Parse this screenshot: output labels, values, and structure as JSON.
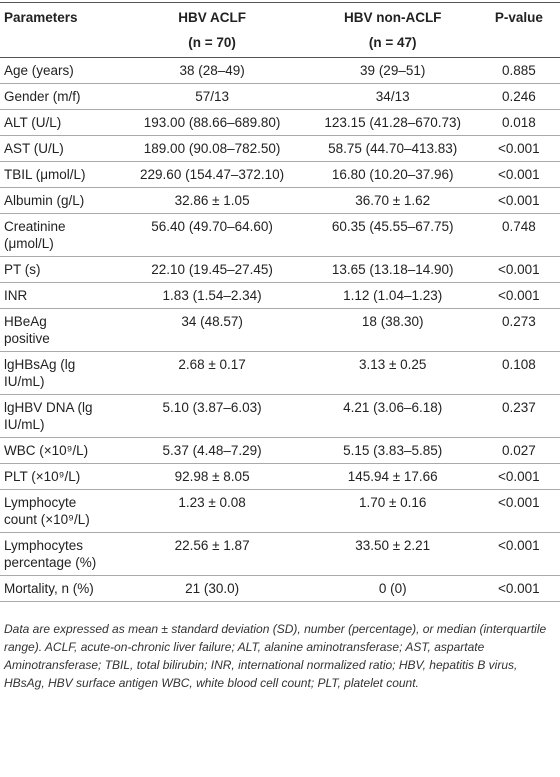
{
  "table": {
    "header": [
      "Parameters",
      "HBV ACLF",
      "HBV non-ACLF",
      "P-value"
    ],
    "subheader": [
      "(n = 70)",
      "(n = 47)"
    ],
    "rows": [
      [
        [
          "Age (years)"
        ],
        "38 (28–49)",
        "39 (29–51)",
        "0.885"
      ],
      [
        [
          "Gender (m/f)"
        ],
        "57/13",
        "34/13",
        "0.246"
      ],
      [
        [
          "ALT (U/L)"
        ],
        "193.00 (88.66–689.80)",
        "123.15 (41.28–670.73)",
        "0.018"
      ],
      [
        [
          "AST (U/L)"
        ],
        "189.00 (90.08–782.50)",
        "58.75 (44.70–413.83)",
        "<0.001"
      ],
      [
        [
          "TBIL (μmol/L)"
        ],
        "229.60 (154.47–372.10)",
        "16.80 (10.20–37.96)",
        "<0.001"
      ],
      [
        [
          "Albumin (g/L)"
        ],
        "32.86 ± 1.05",
        "36.70 ± 1.62",
        "<0.001"
      ],
      [
        [
          "Creatinine",
          "(μmol/L)"
        ],
        "56.40 (49.70–64.60)",
        "60.35 (45.55–67.75)",
        "0.748"
      ],
      [
        [
          "PT (s)"
        ],
        "22.10 (19.45–27.45)",
        "13.65 (13.18–14.90)",
        "<0.001"
      ],
      [
        [
          "INR"
        ],
        "1.83 (1.54–2.34)",
        "1.12 (1.04–1.23)",
        "<0.001"
      ],
      [
        [
          "HBeAg",
          "positive"
        ],
        "34 (48.57)",
        "18 (38.30)",
        "0.273"
      ],
      [
        [
          "lgHBsAg (lg",
          "IU/mL)"
        ],
        "2.68 ± 0.17",
        "3.13 ± 0.25",
        "0.108"
      ],
      [
        [
          "lgHBV DNA (lg",
          "IU/mL)"
        ],
        "5.10 (3.87–6.03)",
        "4.21 (3.06–6.18)",
        "0.237"
      ],
      [
        [
          "WBC (×10⁹/L)"
        ],
        "5.37 (4.48–7.29)",
        "5.15 (3.83–5.85)",
        "0.027"
      ],
      [
        [
          "PLT (×10⁹/L)"
        ],
        "92.98 ± 8.05",
        "145.94 ± 17.66",
        "<0.001"
      ],
      [
        [
          "Lymphocyte",
          "count (×10⁹/L)"
        ],
        "1.23 ± 0.08",
        "1.70 ± 0.16",
        "<0.001"
      ],
      [
        [
          "Lymphocytes",
          "percentage (%)"
        ],
        "22.56 ± 1.87",
        "33.50 ± 2.21",
        "<0.001"
      ],
      [
        [
          "Mortality, n (%)"
        ],
        "21 (30.0)",
        "0 (0)",
        "<0.001"
      ]
    ],
    "footnote": "Data are expressed as mean ± standard deviation (SD), number (percentage), or median (interquartile range). ACLF, acute-on-chronic liver failure; ALT, alanine aminotransferase; AST, aspartate Aminotransferase; TBIL, total bilirubin; INR, international normalized ratio; HBV, hepatitis B virus, HBsAg, HBV surface antigen WBC, white blood cell count; PLT, platelet count."
  }
}
